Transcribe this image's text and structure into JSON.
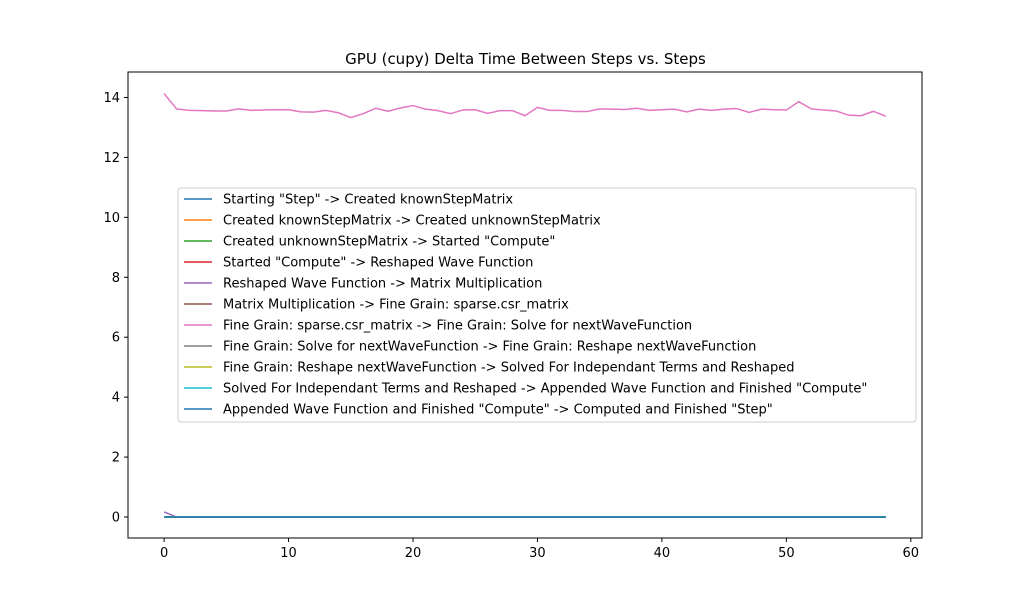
{
  "chart_data": {
    "type": "line",
    "title": "GPU (cupy) Delta Time Between Steps vs. Steps",
    "xlabel": "",
    "ylabel": "",
    "xlim": [
      -2.9,
      60.9
    ],
    "ylim": [
      -0.7,
      14.85
    ],
    "xticks": [
      0,
      10,
      20,
      30,
      40,
      50,
      60
    ],
    "yticks": [
      0,
      2,
      4,
      6,
      8,
      10,
      12,
      14
    ],
    "grid": false,
    "legend_position": "center",
    "x": [
      0,
      1,
      2,
      3,
      4,
      5,
      6,
      7,
      8,
      9,
      10,
      11,
      12,
      13,
      14,
      15,
      16,
      17,
      18,
      19,
      20,
      21,
      22,
      23,
      24,
      25,
      26,
      27,
      28,
      29,
      30,
      31,
      32,
      33,
      34,
      35,
      36,
      37,
      38,
      39,
      40,
      41,
      42,
      43,
      44,
      45,
      46,
      47,
      48,
      49,
      50,
      51,
      52,
      53,
      54,
      55,
      56,
      57,
      58
    ],
    "series": [
      {
        "name": "Starting \"Step\" -> Created knownStepMatrix",
        "color": "#1f77b4",
        "values": [
          0,
          0,
          0,
          0,
          0,
          0,
          0,
          0,
          0,
          0,
          0,
          0,
          0,
          0,
          0,
          0,
          0,
          0,
          0,
          0,
          0,
          0,
          0,
          0,
          0,
          0,
          0,
          0,
          0,
          0,
          0,
          0,
          0,
          0,
          0,
          0,
          0,
          0,
          0,
          0,
          0,
          0,
          0,
          0,
          0,
          0,
          0,
          0,
          0,
          0,
          0,
          0,
          0,
          0,
          0,
          0,
          0,
          0,
          0
        ]
      },
      {
        "name": "Created knownStepMatrix -> Created unknownStepMatrix",
        "color": "#ff7f0e",
        "values": [
          0,
          0,
          0,
          0,
          0,
          0,
          0,
          0,
          0,
          0,
          0,
          0,
          0,
          0,
          0,
          0,
          0,
          0,
          0,
          0,
          0,
          0,
          0,
          0,
          0,
          0,
          0,
          0,
          0,
          0,
          0,
          0,
          0,
          0,
          0,
          0,
          0,
          0,
          0,
          0,
          0,
          0,
          0,
          0,
          0,
          0,
          0,
          0,
          0,
          0,
          0,
          0,
          0,
          0,
          0,
          0,
          0,
          0,
          0
        ]
      },
      {
        "name": "Created unknownStepMatrix -> Started \"Compute\"",
        "color": "#2ca02c",
        "values": [
          0,
          0,
          0,
          0,
          0,
          0,
          0,
          0,
          0,
          0,
          0,
          0,
          0,
          0,
          0,
          0,
          0,
          0,
          0,
          0,
          0,
          0,
          0,
          0,
          0,
          0,
          0,
          0,
          0,
          0,
          0,
          0,
          0,
          0,
          0,
          0,
          0,
          0,
          0,
          0,
          0,
          0,
          0,
          0,
          0,
          0,
          0,
          0,
          0,
          0,
          0,
          0,
          0,
          0,
          0,
          0,
          0,
          0,
          0
        ]
      },
      {
        "name": "Started \"Compute\" -> Reshaped Wave Function",
        "color": "#d62728",
        "values": [
          0,
          0,
          0,
          0,
          0,
          0,
          0,
          0,
          0,
          0,
          0,
          0,
          0,
          0,
          0,
          0,
          0,
          0,
          0,
          0,
          0,
          0,
          0,
          0,
          0,
          0,
          0,
          0,
          0,
          0,
          0,
          0,
          0,
          0,
          0,
          0,
          0,
          0,
          0,
          0,
          0,
          0,
          0,
          0,
          0,
          0,
          0,
          0,
          0,
          0,
          0,
          0,
          0,
          0,
          0,
          0,
          0,
          0,
          0
        ]
      },
      {
        "name": "Reshaped Wave Function -> Matrix Multiplication",
        "color": "#9467bd",
        "values": [
          0.17,
          0,
          0,
          0,
          0,
          0,
          0,
          0,
          0,
          0,
          0,
          0,
          0,
          0,
          0,
          0,
          0,
          0,
          0,
          0,
          0,
          0,
          0,
          0,
          0,
          0,
          0,
          0,
          0,
          0,
          0,
          0,
          0,
          0,
          0,
          0,
          0,
          0,
          0,
          0,
          0,
          0,
          0,
          0,
          0,
          0,
          0,
          0,
          0,
          0,
          0,
          0,
          0,
          0,
          0,
          0,
          0,
          0,
          0
        ]
      },
      {
        "name": "Matrix Multiplication -> Fine Grain: sparse.csr_matrix",
        "color": "#8c564b",
        "values": [
          0,
          0,
          0,
          0,
          0,
          0,
          0,
          0,
          0,
          0,
          0,
          0,
          0,
          0,
          0,
          0,
          0,
          0,
          0,
          0,
          0,
          0,
          0,
          0,
          0,
          0,
          0,
          0,
          0,
          0,
          0,
          0,
          0,
          0,
          0,
          0,
          0,
          0,
          0,
          0,
          0,
          0,
          0,
          0,
          0,
          0,
          0,
          0,
          0,
          0,
          0,
          0,
          0,
          0,
          0,
          0,
          0,
          0,
          0
        ]
      },
      {
        "name": "Fine Grain: sparse.csr_matrix -> Fine Grain: Solve for nextWaveFunction",
        "color": "#e377c2",
        "values": [
          14.13,
          13.62,
          13.57,
          13.56,
          13.55,
          13.55,
          13.62,
          13.57,
          13.58,
          13.59,
          13.59,
          13.52,
          13.51,
          13.57,
          13.49,
          13.33,
          13.46,
          13.64,
          13.54,
          13.65,
          13.73,
          13.61,
          13.56,
          13.46,
          13.58,
          13.59,
          13.47,
          13.56,
          13.56,
          13.39,
          13.67,
          13.57,
          13.57,
          13.53,
          13.53,
          13.62,
          13.61,
          13.6,
          13.64,
          13.57,
          13.59,
          13.61,
          13.52,
          13.61,
          13.57,
          13.61,
          13.63,
          13.5,
          13.61,
          13.59,
          13.58,
          13.86,
          13.62,
          13.58,
          13.55,
          13.41,
          13.39,
          13.54,
          13.37
        ]
      },
      {
        "name": "Fine Grain: Solve for nextWaveFunction -> Fine Grain: Reshape nextWaveFunction",
        "color": "#7f7f7f",
        "values": [
          0,
          0,
          0,
          0,
          0,
          0,
          0,
          0,
          0,
          0,
          0,
          0,
          0,
          0,
          0,
          0,
          0,
          0,
          0,
          0,
          0,
          0,
          0,
          0,
          0,
          0,
          0,
          0,
          0,
          0,
          0,
          0,
          0,
          0,
          0,
          0,
          0,
          0,
          0,
          0,
          0,
          0,
          0,
          0,
          0,
          0,
          0,
          0,
          0,
          0,
          0,
          0,
          0,
          0,
          0,
          0,
          0,
          0,
          0
        ]
      },
      {
        "name": "Fine Grain: Reshape nextWaveFunction -> Solved For Independant Terms and Reshaped",
        "color": "#bcbd22",
        "values": [
          0,
          0,
          0,
          0,
          0,
          0,
          0,
          0,
          0,
          0,
          0,
          0,
          0,
          0,
          0,
          0,
          0,
          0,
          0,
          0,
          0,
          0,
          0,
          0,
          0,
          0,
          0,
          0,
          0,
          0,
          0,
          0,
          0,
          0,
          0,
          0,
          0,
          0,
          0,
          0,
          0,
          0,
          0,
          0,
          0,
          0,
          0,
          0,
          0,
          0,
          0,
          0,
          0,
          0,
          0,
          0,
          0,
          0,
          0
        ]
      },
      {
        "name": "Solved For Independant Terms and Reshaped -> Appended Wave Function and Finished \"Compute\"",
        "color": "#17becf",
        "values": [
          0,
          0,
          0,
          0,
          0,
          0,
          0,
          0,
          0,
          0,
          0,
          0,
          0,
          0,
          0,
          0,
          0,
          0,
          0,
          0,
          0,
          0,
          0,
          0,
          0,
          0,
          0,
          0,
          0,
          0,
          0,
          0,
          0,
          0,
          0,
          0,
          0,
          0,
          0,
          0,
          0,
          0,
          0,
          0,
          0,
          0,
          0,
          0,
          0,
          0,
          0,
          0,
          0,
          0,
          0,
          0,
          0,
          0,
          0
        ]
      },
      {
        "name": "Appended Wave Function and Finished \"Compute\" -> Computed and Finished \"Step\"",
        "color": "#1f77b4",
        "values": [
          0,
          0,
          0,
          0,
          0,
          0,
          0,
          0,
          0,
          0,
          0,
          0,
          0,
          0,
          0,
          0,
          0,
          0,
          0,
          0,
          0,
          0,
          0,
          0,
          0,
          0,
          0,
          0,
          0,
          0,
          0,
          0,
          0,
          0,
          0,
          0,
          0,
          0,
          0,
          0,
          0,
          0,
          0,
          0,
          0,
          0,
          0,
          0,
          0,
          0,
          0,
          0,
          0,
          0,
          0,
          0,
          0,
          0,
          0
        ]
      }
    ]
  }
}
